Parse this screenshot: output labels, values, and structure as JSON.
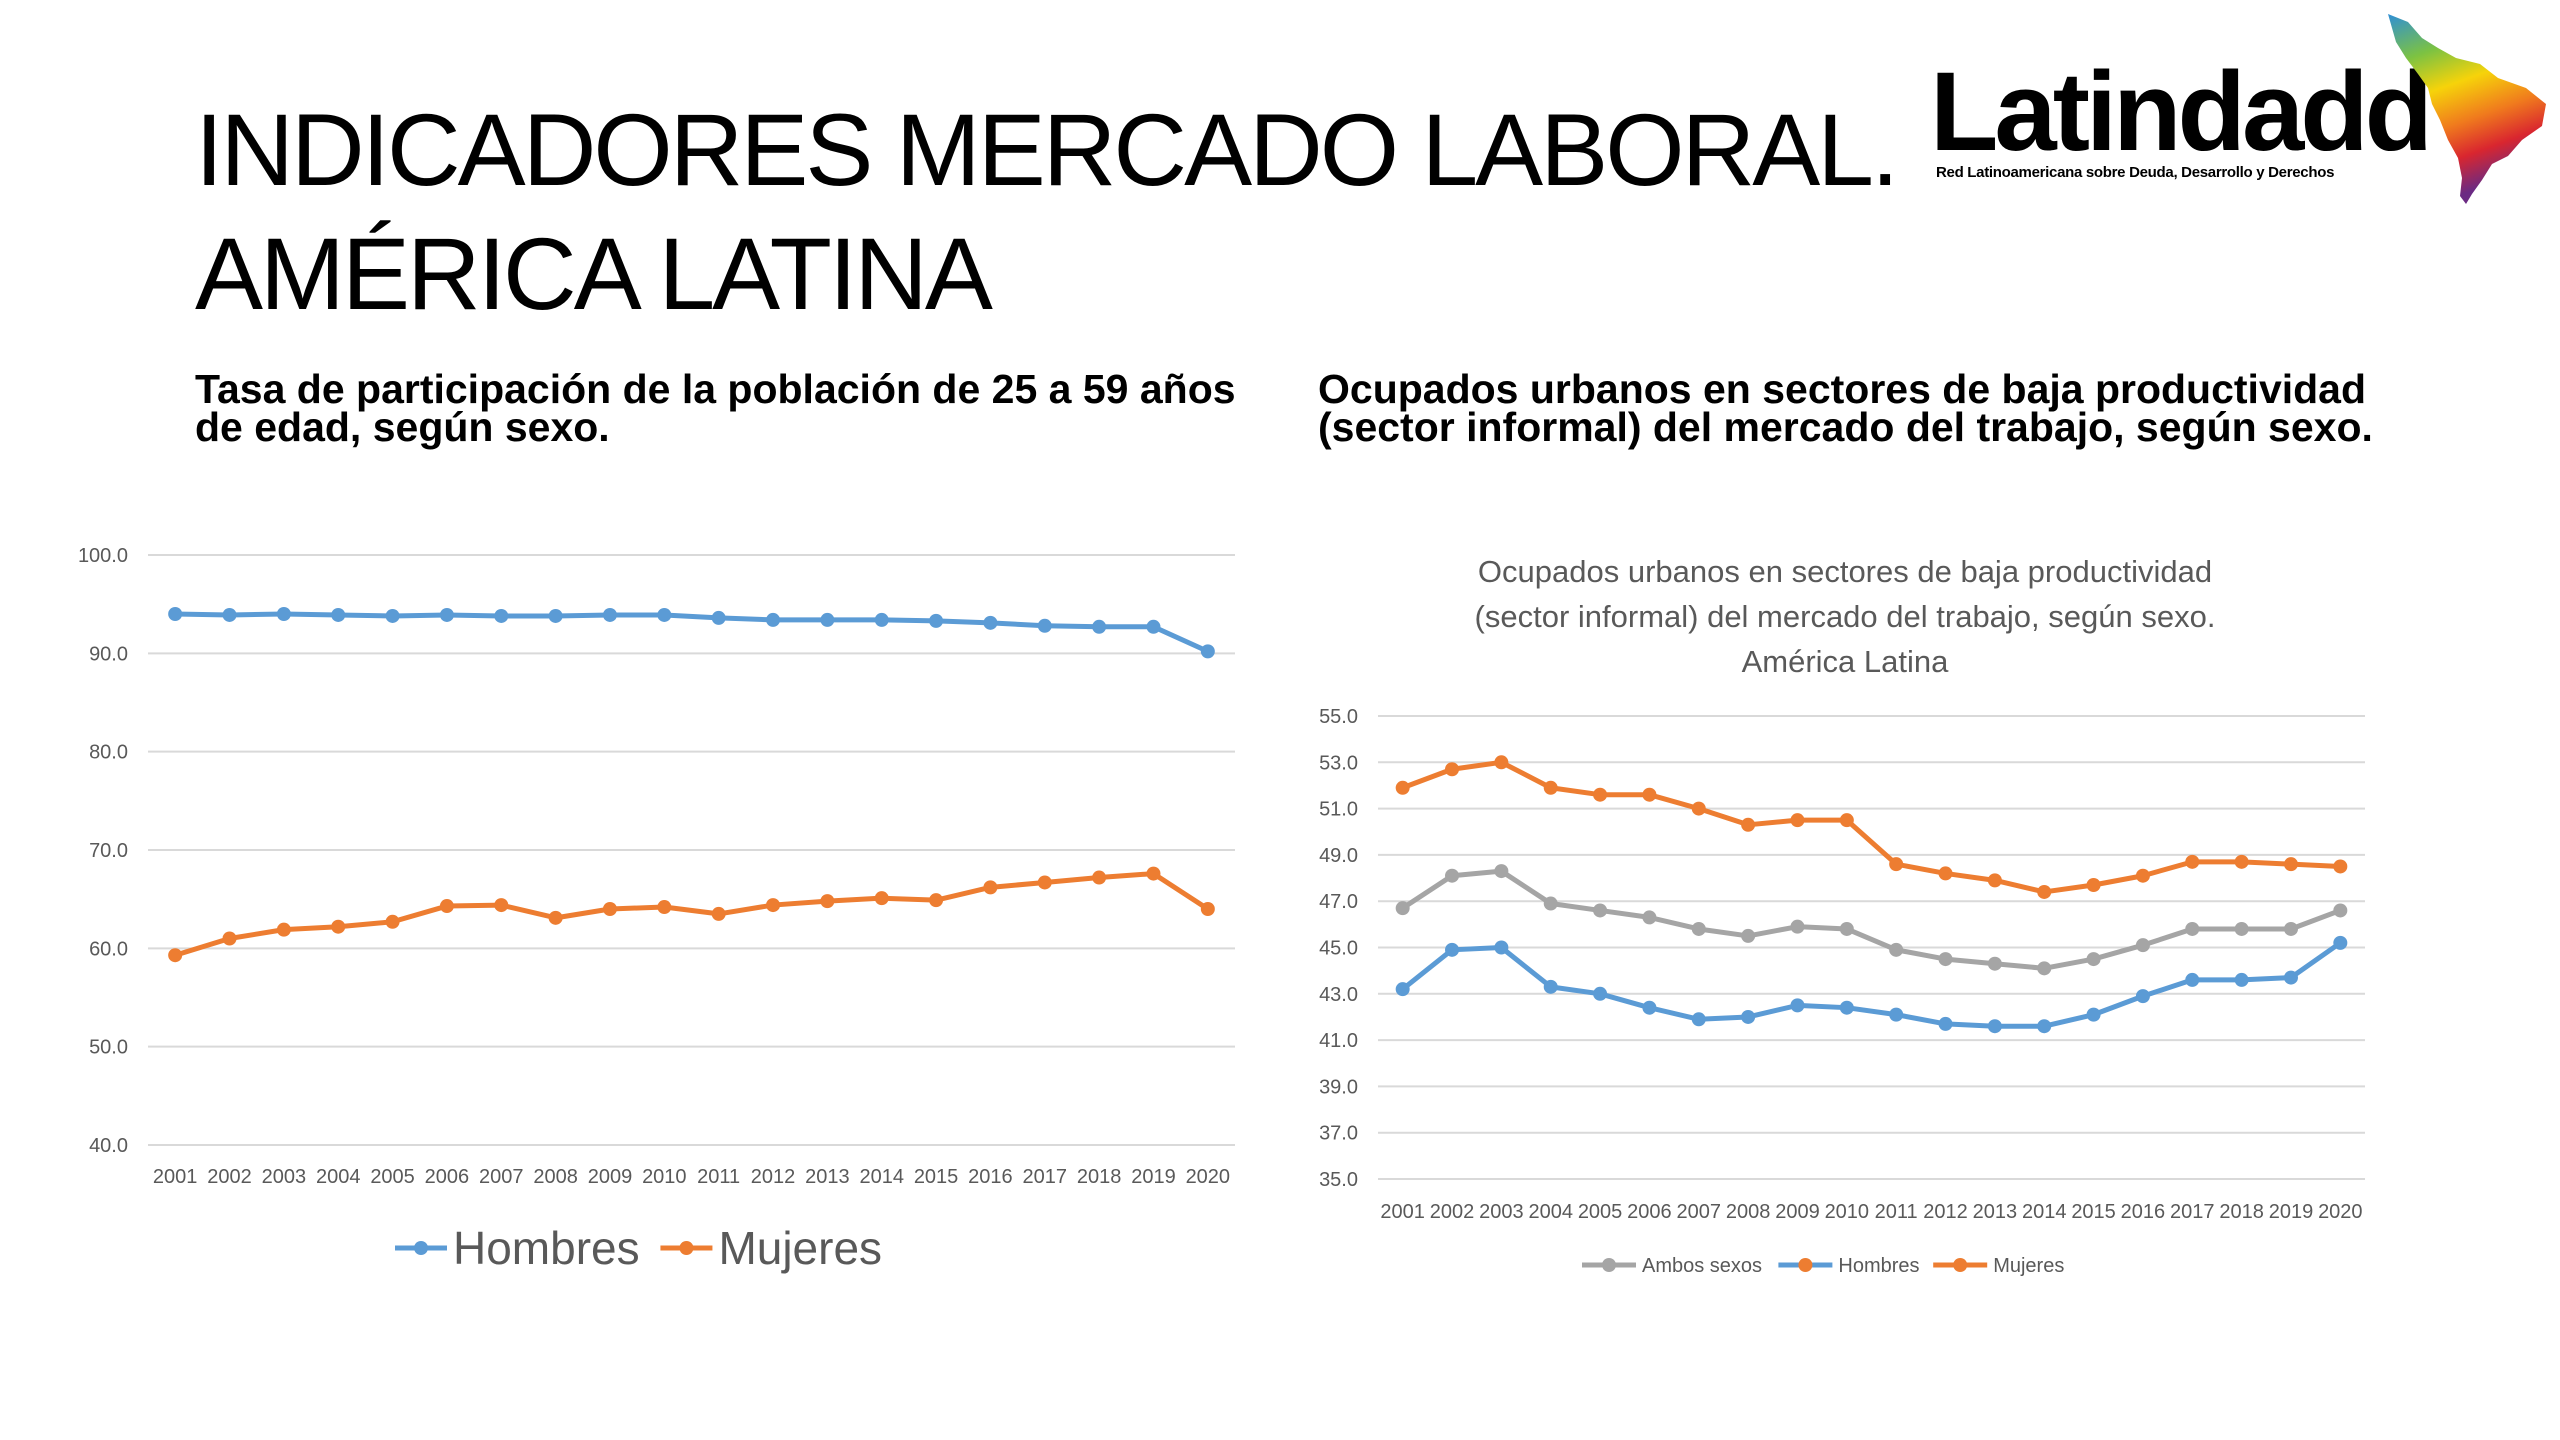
{
  "slide": {
    "title_line1": "INDICADORES MERCADO LABORAL.",
    "title_line2": "AMÉRICA LATINA",
    "left_subtitle": "Tasa de participación de la población de 25 a 59 años de edad, según sexo.",
    "right_subtitle": "Ocupados urbanos en sectores de baja productividad (sector informal) del mercado del trabajo, según sexo."
  },
  "logo": {
    "name": "Latindadd",
    "tagline": "Red Latinoamericana sobre Deuda, Desarrollo y Derechos"
  },
  "chart_data": [
    {
      "type": "line",
      "title": "",
      "x": [
        "2001",
        "2002",
        "2003",
        "2004",
        "2005",
        "2006",
        "2007",
        "2008",
        "2009",
        "2010",
        "2011",
        "2012",
        "2013",
        "2014",
        "2015",
        "2016",
        "2017",
        "2018",
        "2019",
        "2020"
      ],
      "y_ticks": [
        "100.0",
        "90.0",
        "80.0",
        "70.0",
        "60.0",
        "50.0",
        "40.0"
      ],
      "ylim": [
        40,
        100
      ],
      "grid": true,
      "legend": "bottom",
      "series": [
        {
          "name": "Hombres",
          "color": "#5b9bd5",
          "values": [
            94.0,
            93.9,
            94.0,
            93.9,
            93.8,
            93.9,
            93.8,
            93.8,
            93.9,
            93.9,
            93.6,
            93.4,
            93.4,
            93.4,
            93.3,
            93.1,
            92.8,
            92.7,
            92.7,
            90.2
          ]
        },
        {
          "name": "Mujeres",
          "color": "#ed7d31",
          "values": [
            59.3,
            61.0,
            61.9,
            62.2,
            62.7,
            64.3,
            64.4,
            63.1,
            64.0,
            64.2,
            63.5,
            64.4,
            64.8,
            65.1,
            64.9,
            66.2,
            66.7,
            67.2,
            67.6,
            64.0
          ]
        }
      ]
    },
    {
      "type": "line",
      "title_lines": [
        "Ocupados urbanos en sectores de baja productividad",
        "(sector informal) del mercado del trabajo, según sexo.",
        "América Latina"
      ],
      "x": [
        "2001",
        "2002",
        "2003",
        "2004",
        "2005",
        "2006",
        "2007",
        "2008",
        "2009",
        "2010",
        "2011",
        "2012",
        "2013",
        "2014",
        "2015",
        "2016",
        "2017",
        "2018",
        "2019",
        "2020"
      ],
      "y_ticks": [
        "55.0",
        "53.0",
        "51.0",
        "49.0",
        "47.0",
        "45.0",
        "43.0",
        "41.0",
        "39.0",
        "37.0",
        "35.0"
      ],
      "ylim": [
        35,
        55
      ],
      "grid": true,
      "legend": "bottom",
      "series": [
        {
          "name": "Ambos sexos",
          "color": "#a5a5a5",
          "legend_marker": "#a5a5a5",
          "values": [
            46.7,
            48.1,
            48.3,
            46.9,
            46.6,
            46.3,
            45.8,
            45.5,
            45.9,
            45.8,
            44.9,
            44.5,
            44.3,
            44.1,
            44.5,
            45.1,
            45.8,
            45.8,
            45.8,
            46.6
          ]
        },
        {
          "name": "Hombres",
          "color": "#5b9bd5",
          "legend_marker": "#ed7d31",
          "values": [
            43.2,
            44.9,
            45.0,
            43.3,
            43.0,
            42.4,
            41.9,
            42.0,
            42.5,
            42.4,
            42.1,
            41.7,
            41.6,
            41.6,
            42.1,
            42.9,
            43.6,
            43.6,
            43.7,
            45.2
          ]
        },
        {
          "name": "Mujeres",
          "color": "#ed7d31",
          "legend_marker": "#ed7d31",
          "values": [
            51.9,
            52.7,
            53.0,
            51.9,
            51.6,
            51.6,
            51.0,
            50.3,
            50.5,
            50.5,
            48.6,
            48.2,
            47.9,
            47.4,
            47.7,
            48.1,
            48.7,
            48.7,
            48.6,
            48.5
          ]
        }
      ]
    }
  ]
}
